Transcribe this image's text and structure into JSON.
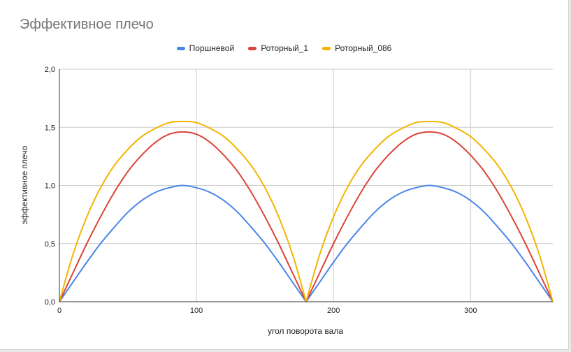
{
  "chart_data": {
    "type": "line",
    "title": "Эффективное плечо",
    "xlabel": "угол поворота вала",
    "ylabel": "эффективное плечо",
    "xlim": [
      0,
      360
    ],
    "ylim": [
      0,
      2
    ],
    "x_ticks": [
      0,
      100,
      200,
      300
    ],
    "x_tick_labels": [
      "0",
      "100",
      "200",
      "300"
    ],
    "y_ticks": [
      0,
      0.5,
      1,
      1.5,
      2
    ],
    "y_tick_labels": [
      "0,0",
      "0,5",
      "1,0",
      "1,5",
      "2,0"
    ],
    "grid": true,
    "legend_position": "top",
    "x": [
      0,
      10,
      20,
      30,
      40,
      50,
      60,
      70,
      80,
      90,
      100,
      110,
      120,
      130,
      140,
      150,
      160,
      170,
      180,
      190,
      200,
      210,
      220,
      230,
      240,
      250,
      260,
      270,
      280,
      290,
      300,
      310,
      320,
      330,
      340,
      350,
      360
    ],
    "series": [
      {
        "name": "Поршневой",
        "color": "#4a86e8",
        "values": [
          0,
          0.17,
          0.34,
          0.5,
          0.64,
          0.77,
          0.87,
          0.94,
          0.98,
          1.0,
          0.98,
          0.94,
          0.87,
          0.77,
          0.64,
          0.5,
          0.34,
          0.17,
          0,
          0.17,
          0.34,
          0.5,
          0.64,
          0.77,
          0.87,
          0.94,
          0.98,
          1.0,
          0.98,
          0.94,
          0.87,
          0.77,
          0.64,
          0.5,
          0.34,
          0.17,
          0
        ]
      },
      {
        "name": "Роторный_1",
        "color": "#db4437",
        "values": [
          0,
          0.25,
          0.5,
          0.73,
          0.94,
          1.12,
          1.26,
          1.37,
          1.44,
          1.46,
          1.44,
          1.37,
          1.26,
          1.12,
          0.94,
          0.73,
          0.5,
          0.25,
          0,
          0.25,
          0.5,
          0.73,
          0.94,
          1.12,
          1.26,
          1.37,
          1.44,
          1.46,
          1.44,
          1.37,
          1.26,
          1.12,
          0.94,
          0.73,
          0.5,
          0.25,
          0
        ]
      },
      {
        "name": "Роторный_086",
        "color": "#f4b400",
        "values": [
          0,
          0.41,
          0.73,
          0.98,
          1.17,
          1.31,
          1.42,
          1.49,
          1.54,
          1.55,
          1.54,
          1.49,
          1.42,
          1.31,
          1.17,
          0.98,
          0.73,
          0.41,
          0,
          0.41,
          0.73,
          0.98,
          1.17,
          1.31,
          1.42,
          1.49,
          1.54,
          1.55,
          1.54,
          1.49,
          1.42,
          1.31,
          1.17,
          0.98,
          0.73,
          0.41,
          0
        ]
      }
    ]
  }
}
